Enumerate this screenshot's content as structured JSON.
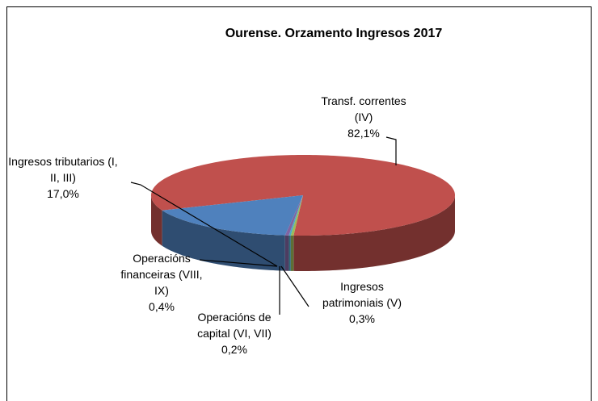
{
  "chart_data": {
    "type": "pie3d",
    "title": "Ourense. Orzamento Ingresos 2017",
    "categories": [
      "Transf. correntes (IV)",
      "Ingresos patrimoniais (V)",
      "Operacións de capital (VI, VII)",
      "Operacións financeiras (VIII, IX)",
      "Ingresos tributarios (I, II, III)"
    ],
    "values": [
      82.1,
      0.3,
      0.2,
      0.4,
      17.0
    ],
    "value_labels": [
      "82,1%",
      "0,3%",
      "0,2%",
      "0,4%",
      "17,0%"
    ],
    "colors": [
      "#c0504d",
      "#9bbb59",
      "#4bacc6",
      "#8064a2",
      "#4f81bd"
    ]
  }
}
